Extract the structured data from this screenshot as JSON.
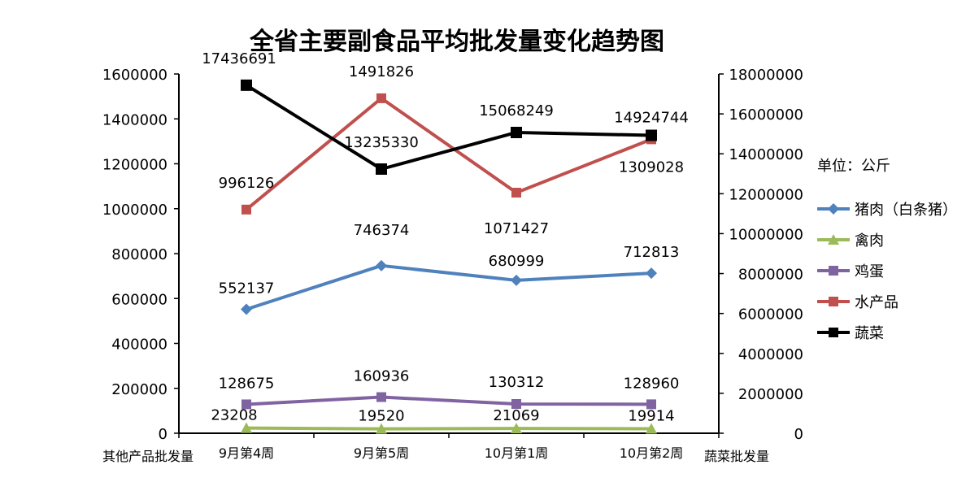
{
  "chart_data": {
    "type": "line",
    "title": "全省主要副食品平均批发量变化趋势图",
    "unit_note": "单位：公斤",
    "left_axis_label": "其他产品批发量",
    "right_axis_label": "蔬菜批发量",
    "categories": [
      "9月第4周",
      "9月第5周",
      "10月第1周",
      "10月第2周"
    ],
    "left_axis": {
      "min": 0,
      "max": 1600000,
      "step": 200000,
      "ticks": [
        "0",
        "200000",
        "400000",
        "600000",
        "800000",
        "1000000",
        "1200000",
        "1400000",
        "1600000"
      ]
    },
    "right_axis": {
      "min": 0,
      "max": 18000000,
      "step": 2000000,
      "ticks": [
        "0",
        "2000000",
        "4000000",
        "6000000",
        "8000000",
        "10000000",
        "12000000",
        "14000000",
        "16000000",
        "18000000"
      ]
    },
    "grid": false,
    "legend_position": "right",
    "series": [
      {
        "name": "猪肉（白条猪）",
        "axis": "left",
        "color": "#4F81BD",
        "marker": "diamond",
        "values": [
          552137,
          746374,
          680999,
          712813
        ],
        "labels": [
          "552137",
          "746374",
          "680999",
          "712813"
        ]
      },
      {
        "name": "禽肉",
        "axis": "left",
        "color": "#9BBB59",
        "marker": "triangle",
        "values": [
          23208,
          19520,
          21069,
          19914
        ],
        "labels": [
          "23208",
          "19520",
          "21069",
          "19914"
        ]
      },
      {
        "name": "鸡蛋",
        "axis": "left",
        "color": "#8064A2",
        "marker": "square",
        "values": [
          128675,
          160936,
          130312,
          128960
        ],
        "labels": [
          "128675",
          "160936",
          "130312",
          "128960"
        ]
      },
      {
        "name": "水产品",
        "axis": "left",
        "color": "#C0504D",
        "marker": "square",
        "values": [
          996126,
          1491826,
          1071427,
          1309028
        ],
        "labels": [
          "996126",
          "1491826",
          "1071427",
          "1309028"
        ]
      },
      {
        "name": "蔬菜",
        "axis": "right",
        "color": "#000000",
        "marker": "square",
        "values": [
          17436691,
          13235330,
          15068249,
          14924744
        ],
        "labels": [
          "17436691",
          "13235330",
          "15068249",
          "14924744"
        ]
      }
    ]
  }
}
